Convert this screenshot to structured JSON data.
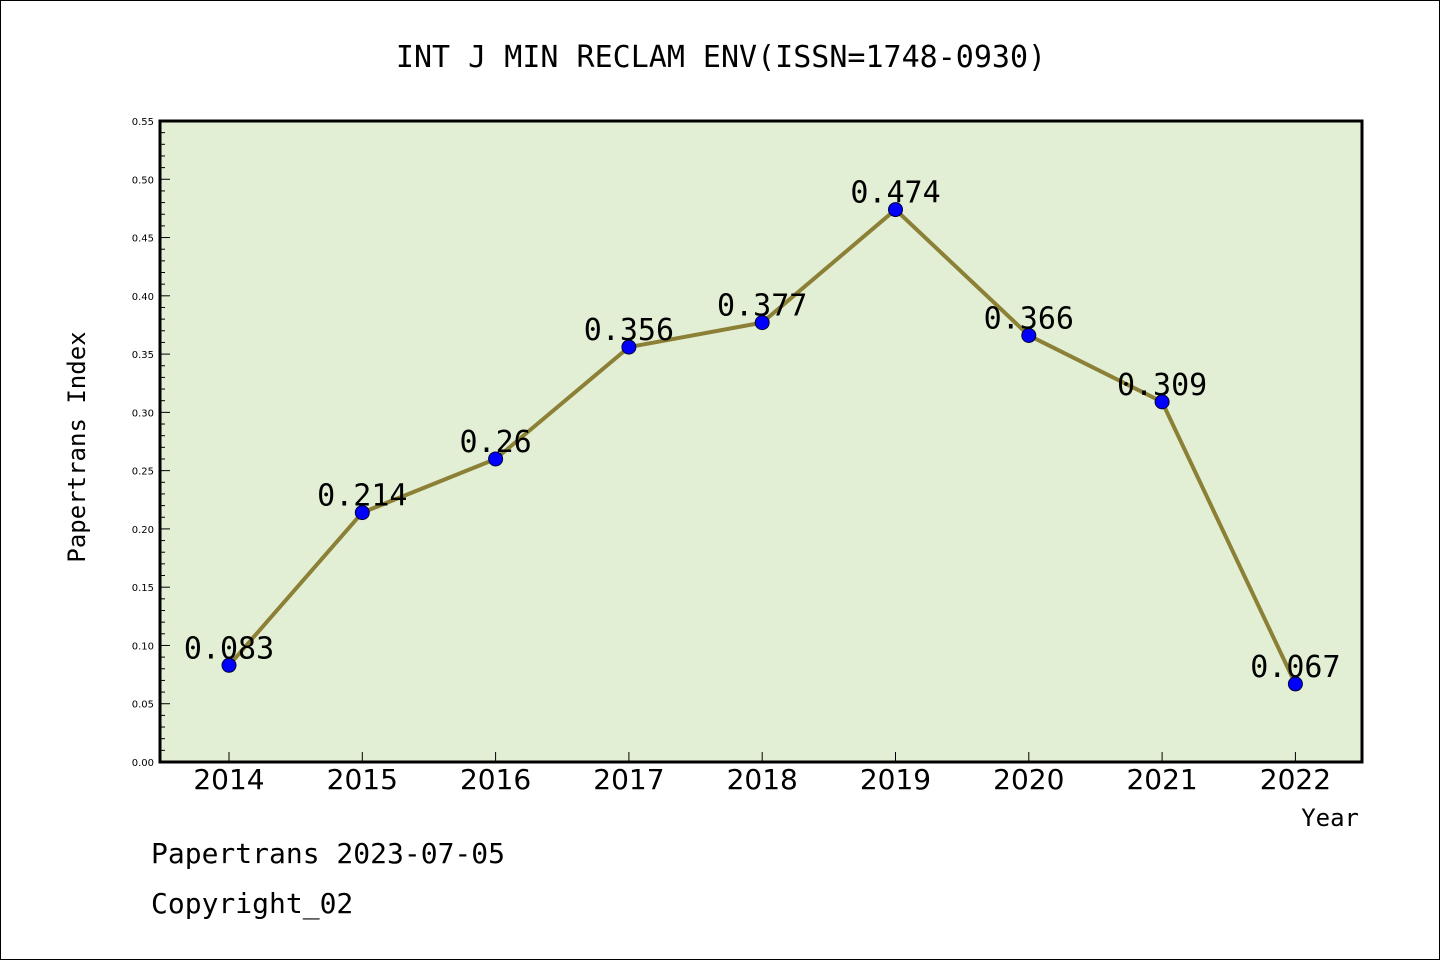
{
  "chart_data": {
    "type": "line",
    "title": "INT J MIN RECLAM ENV(ISSN=1748-0930)",
    "xlabel": "Year",
    "ylabel": "Papertrans Index",
    "categories": [
      "2014",
      "2015",
      "2016",
      "2017",
      "2018",
      "2019",
      "2020",
      "2021",
      "2022"
    ],
    "series": [
      {
        "values": [
          0.083,
          0.214,
          0.26,
          0.356,
          0.377,
          0.474,
          0.366,
          0.309,
          0.067
        ],
        "labels": [
          "0.083",
          "0.214",
          "0.26",
          "0.356",
          "0.377",
          "0.474",
          "0.366",
          "0.309",
          "0.067"
        ]
      }
    ],
    "ylim": [
      0,
      0.55
    ],
    "yticks": [
      "0.00",
      "0.05",
      "0.10",
      "0.15",
      "0.20",
      "0.25",
      "0.30",
      "0.35",
      "0.40",
      "0.45",
      "0.50",
      "0.55"
    ],
    "grid": false,
    "colors": {
      "plot_background": "#e2efd5",
      "line": "#8b8036",
      "marker": "#0000ff"
    }
  },
  "footer": {
    "source": "Papertrans 2023-07-05",
    "copyright": "Copyright_02"
  }
}
